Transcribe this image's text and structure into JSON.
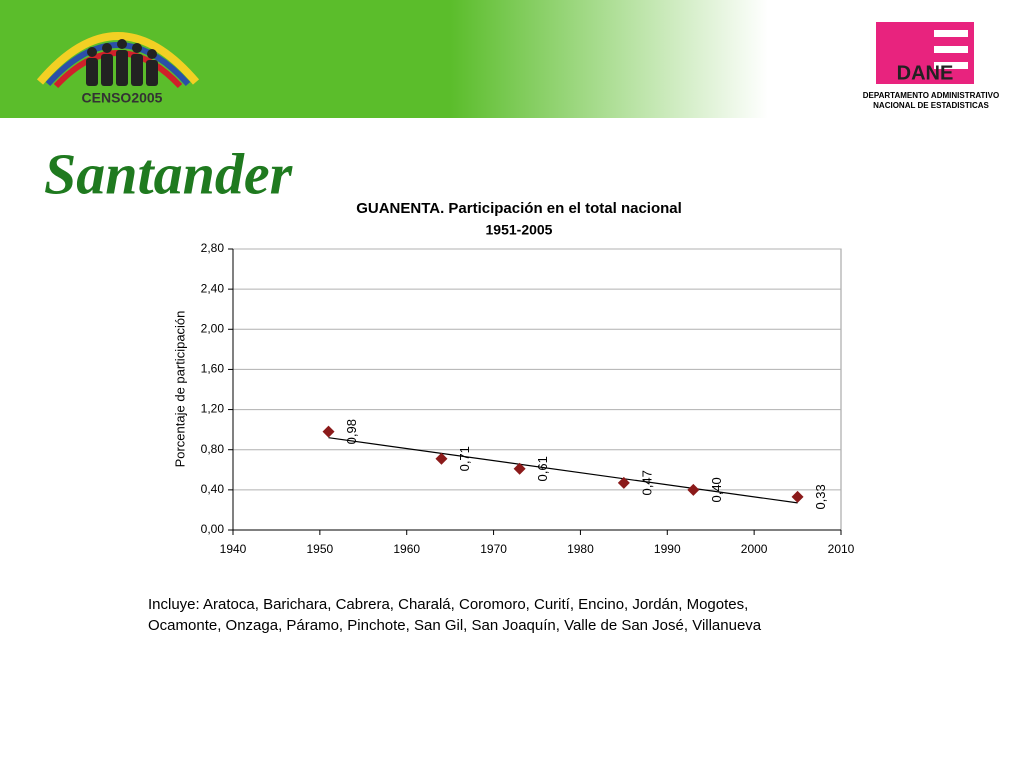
{
  "header": {
    "logo_text": "CENSO2005",
    "agency_logo": "DANE",
    "agency_name": [
      "DEPARTAMENTO ADMINISTRATIVO",
      "NACIONAL DE ESTADISTICAS"
    ]
  },
  "slide_title": "Santander",
  "chart_data": {
    "type": "scatter",
    "title": [
      "GUANENTA. Participación en el total nacional",
      "1951-2005"
    ],
    "y_label": "Porcentaje de participación",
    "x": [
      1951,
      1964,
      1973,
      1985,
      1993,
      2005
    ],
    "values": [
      0.98,
      0.71,
      0.61,
      0.47,
      0.4,
      0.33
    ],
    "value_labels": [
      "0,98",
      "0,71",
      "0,61",
      "0,47",
      "0,40",
      "0,33"
    ],
    "color": "#8b1a1a",
    "trendline": {
      "x": [
        1951,
        2005
      ],
      "values": [
        0.92,
        0.27
      ],
      "color": "#000000"
    },
    "xlim": [
      1940,
      2010
    ],
    "xticks": [
      1940,
      1950,
      1960,
      1970,
      1980,
      1990,
      2000,
      2010
    ],
    "ylim": [
      0,
      2.8
    ],
    "yticks": [
      {
        "value": 0,
        "label": "0,00"
      },
      {
        "value": 0.4,
        "label": "0,40"
      },
      {
        "value": 0.8,
        "label": "0,80"
      },
      {
        "value": 1.2,
        "label": "1,20"
      },
      {
        "value": 1.6,
        "label": "1,60"
      },
      {
        "value": 2.0,
        "label": "2,00"
      },
      {
        "value": 2.4,
        "label": "2,40"
      },
      {
        "value": 2.8,
        "label": "2,80"
      }
    ],
    "grid": true
  },
  "note": [
    "Incluye: Aratoca,  Barichara, Cabrera, Charalá, Coromoro, Curití, Encino, Jordán, Mogotes,",
    "Ocamonte, Onzaga, Páramo, Pinchote, San Gil, San Joaquín, Valle de San José, Villanueva"
  ]
}
